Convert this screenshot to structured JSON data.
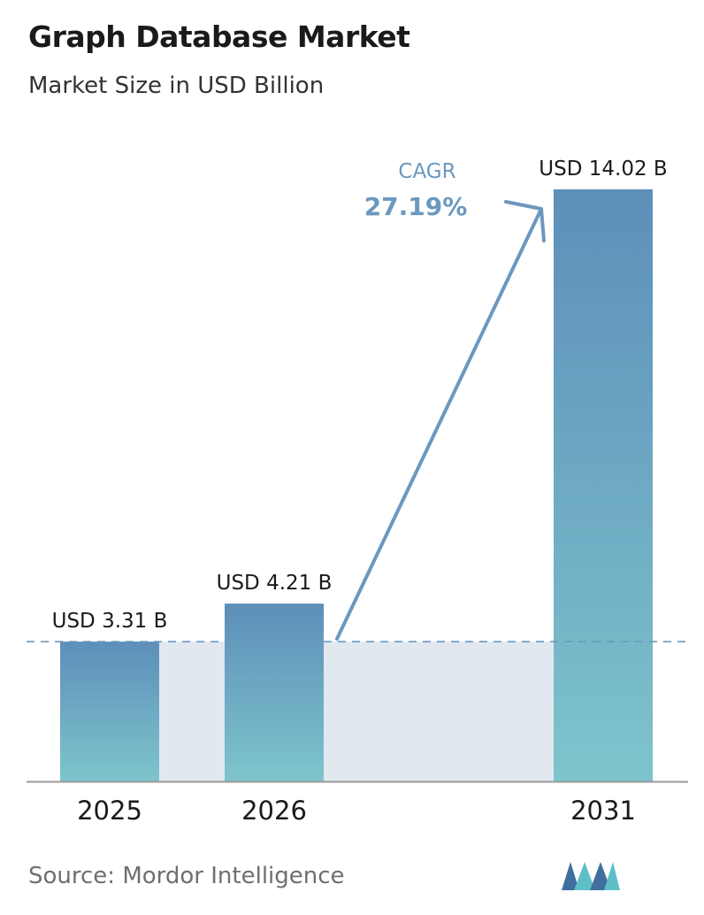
{
  "header": {
    "title": "Graph Database Market",
    "subtitle": "Market Size in USD Billion"
  },
  "cagr": {
    "label": "CAGR",
    "value": "27.19%"
  },
  "footer": {
    "source": "Source:  Mordor Intelligence"
  },
  "colors": {
    "bar_top": "#5d8fba",
    "bar_bottom": "#7ec4cc",
    "band": "#e1e8f0",
    "arrow": "#6b98bf",
    "dashed_line": "#6b98bf",
    "axis": "#9a9a9a",
    "logo_dark": "#3e6f9e",
    "logo_light": "#5ebfc8"
  },
  "chart_data": {
    "type": "bar",
    "categories": [
      "2025",
      "2026",
      "2031"
    ],
    "values": [
      3.31,
      4.21,
      14.02
    ],
    "data_labels": [
      "USD 3.31 B",
      "USD 4.21 B",
      "USD 14.02 B"
    ],
    "title": "Graph Database Market",
    "subtitle": "Market Size in USD Billion",
    "ylim": [
      0,
      14.02
    ],
    "grid": false,
    "legend": "none",
    "baseline_reference_value": 3.31
  }
}
